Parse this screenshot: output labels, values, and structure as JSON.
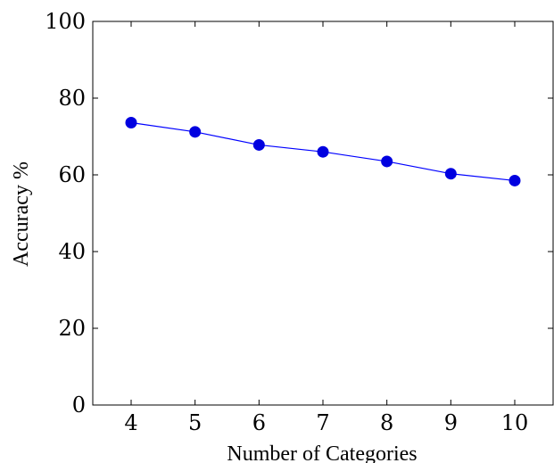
{
  "chart_data": {
    "type": "line",
    "title": "",
    "xlabel": "Number of Categories",
    "ylabel": "Accuracy %",
    "x": [
      4,
      5,
      6,
      7,
      8,
      9,
      10
    ],
    "xlim": [
      3.4,
      10.6
    ],
    "ylim": [
      0,
      100
    ],
    "xticks": [
      4,
      5,
      6,
      7,
      8,
      9,
      10
    ],
    "yticks": [
      0,
      20,
      40,
      60,
      80,
      100
    ],
    "series": [
      {
        "values": [
          73.6,
          71.2,
          67.8,
          66.0,
          63.5,
          60.3,
          58.5
        ]
      }
    ],
    "grid": false,
    "legend": "none",
    "colors": {
      "line": "#0000ff",
      "marker": "#0000e0",
      "axis": "#000000"
    }
  }
}
